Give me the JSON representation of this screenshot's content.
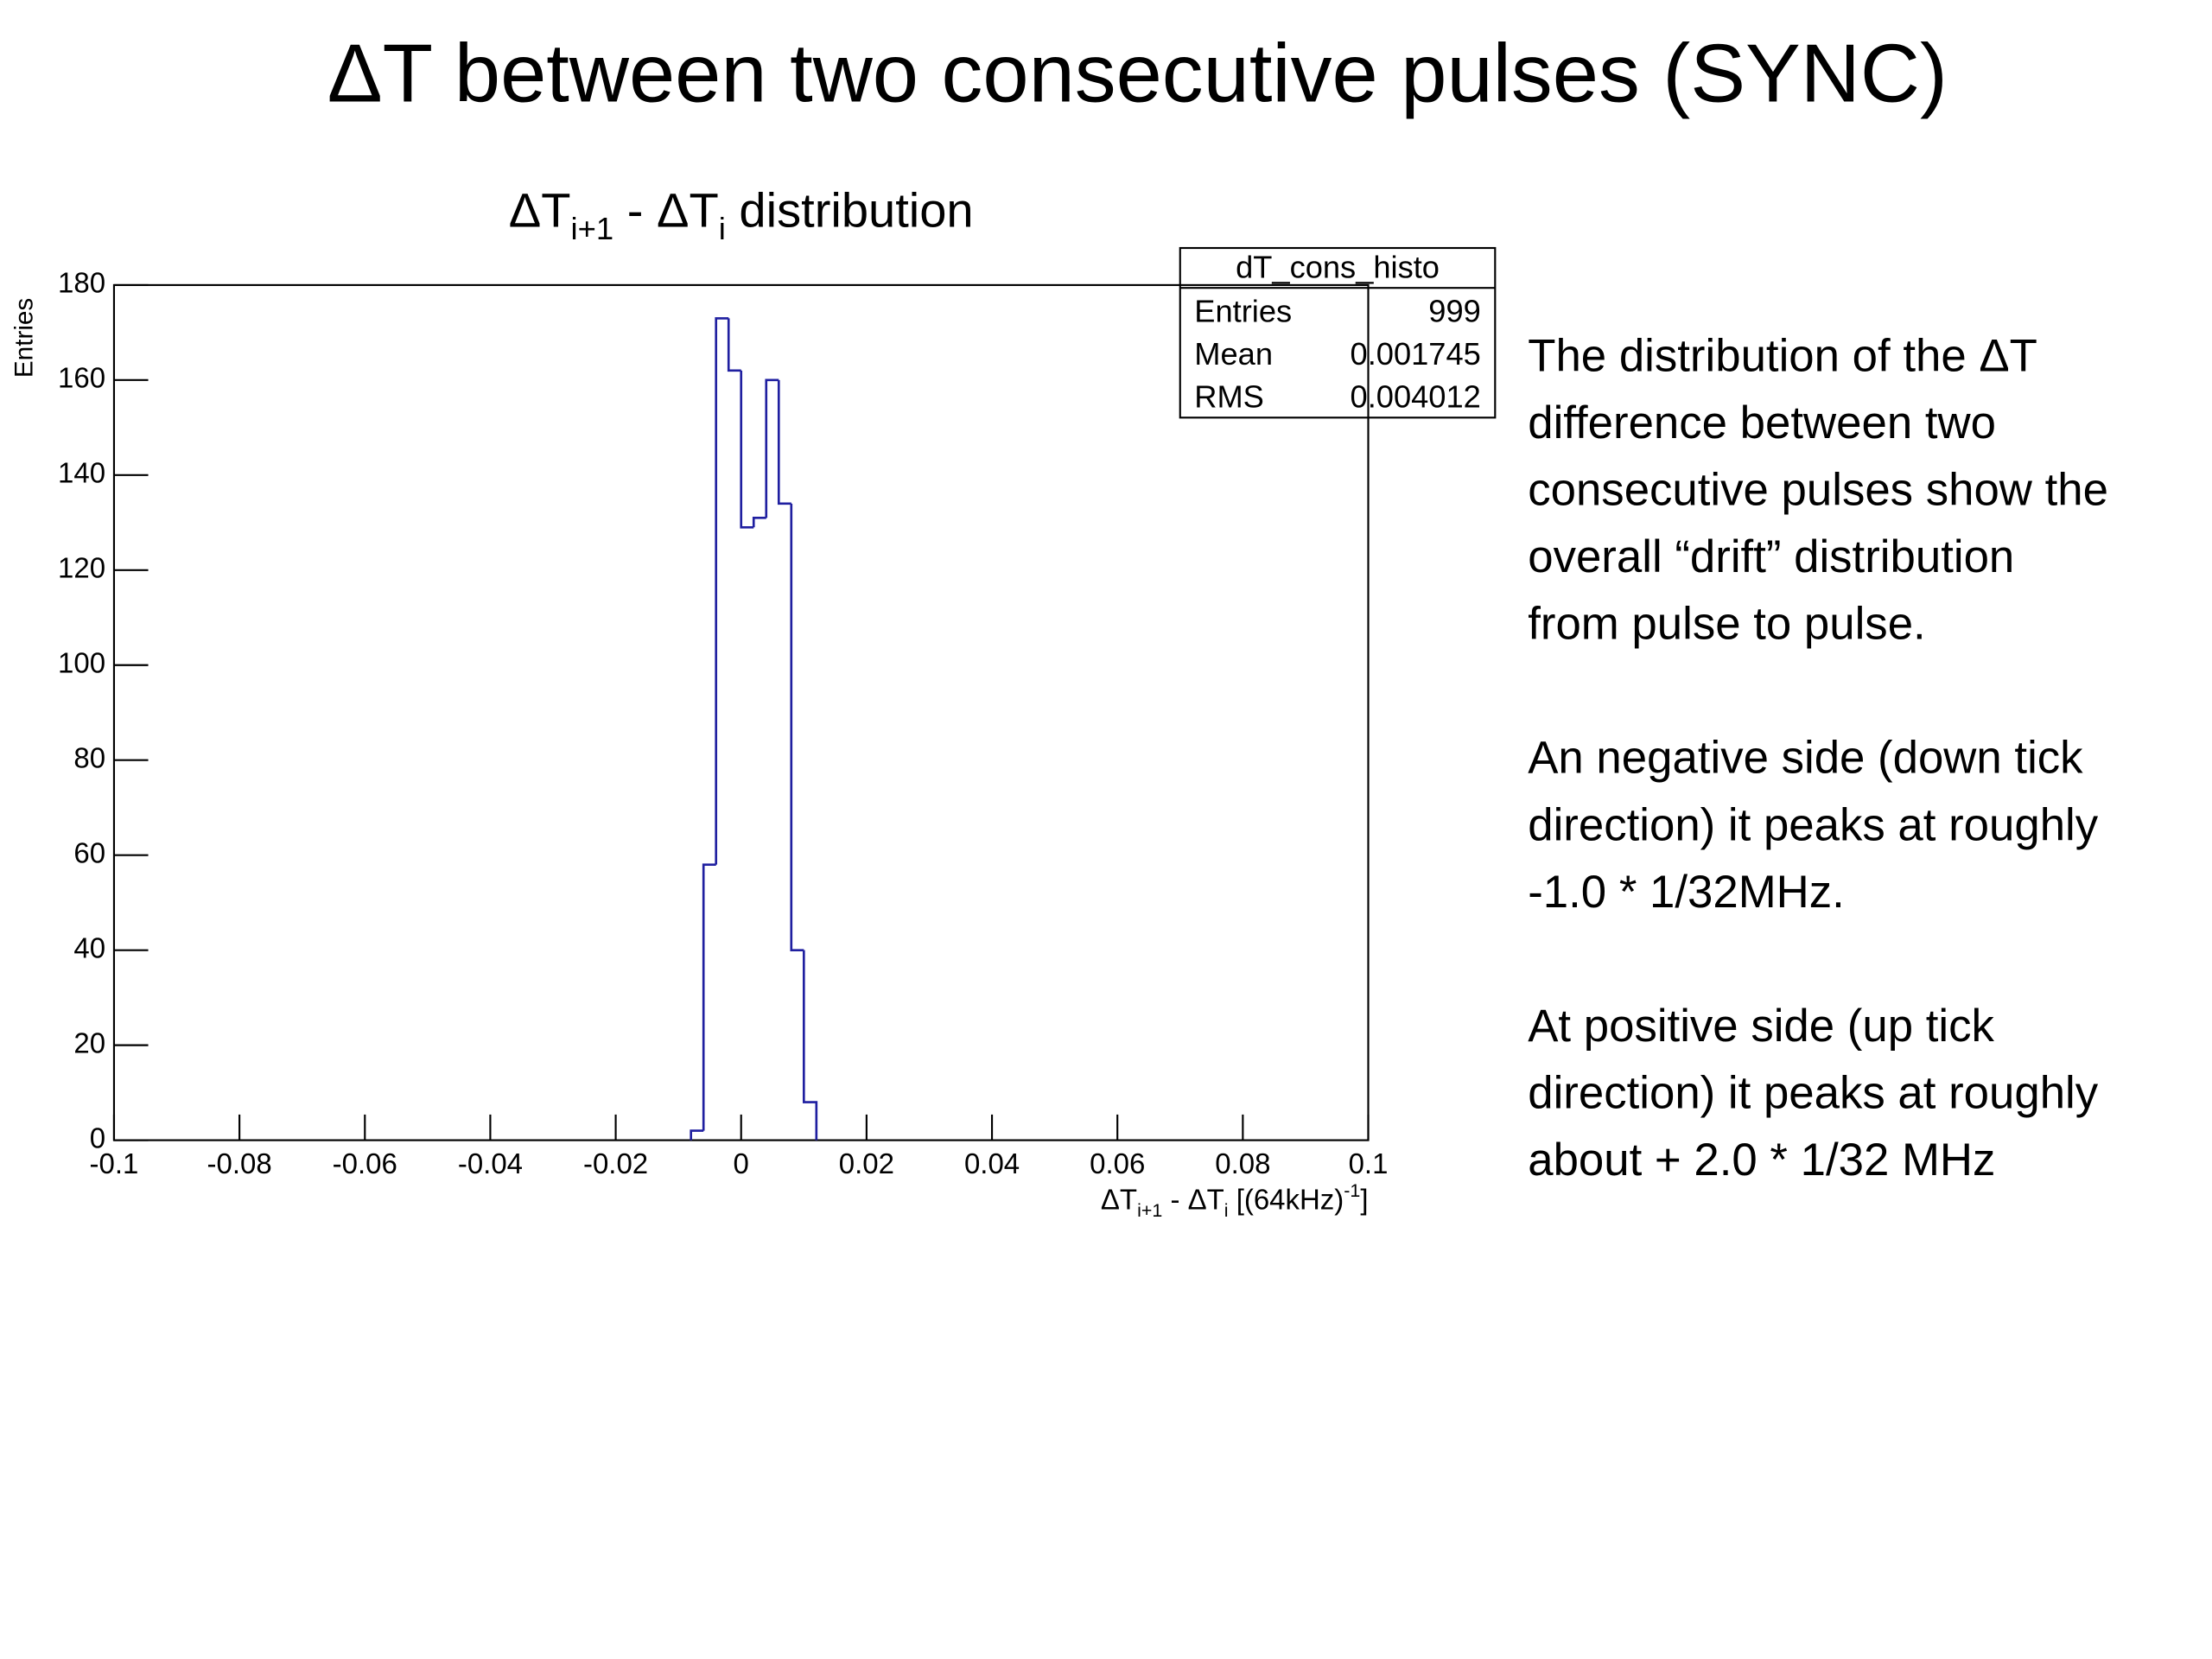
{
  "title": "ΔT between two consecutive pulses (SYNC)",
  "chart_data": {
    "type": "histogram",
    "title_parts": [
      "ΔT",
      "i+1",
      " - ΔT",
      "i",
      " distribution"
    ],
    "x_label_parts": [
      "ΔT",
      "i+1",
      " - ΔT",
      "i",
      " [(64kHz)",
      "-1",
      "]"
    ],
    "y_label": "Entries",
    "bins": [
      -0.008,
      -0.006,
      -0.004,
      -0.002,
      0,
      0.002,
      0.004,
      0.006,
      0.008,
      0.01,
      0.012
    ],
    "values": [
      2,
      58,
      173,
      162,
      129,
      131,
      160,
      134,
      40,
      8
    ],
    "color": "#1f1fa0",
    "xlim": [
      -0.1,
      0.1
    ],
    "xticks": [
      -0.1,
      -0.08,
      -0.06,
      -0.04,
      -0.02,
      0,
      0.02,
      0.04,
      0.06,
      0.08,
      0.1
    ],
    "ylim": [
      0,
      180
    ],
    "yticks": [
      0,
      20,
      40,
      60,
      80,
      100,
      120,
      140,
      160,
      180
    ],
    "stats": {
      "name": "dT_cons_histo",
      "rows": [
        {
          "label": "Entries",
          "value": 999
        },
        {
          "label": "Mean",
          "value": 0.001745
        },
        {
          "label": "RMS",
          "value": 0.004012
        }
      ]
    }
  },
  "notes": [
    [
      "The distribution of the ΔT",
      "difference between two",
      "consecutive pulses show the",
      "overall “drift” distribution",
      "from pulse to pulse."
    ],
    [
      "An negative side (down tick",
      "direction) it peaks at roughly",
      "-1.0 * 1/32MHz."
    ],
    [
      "At positive side (up tick",
      "direction) it peaks at roughly",
      "about + 2.0 * 1/32 MHz"
    ]
  ]
}
